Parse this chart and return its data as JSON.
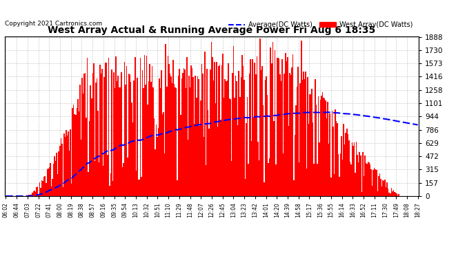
{
  "title": "West Array Actual & Running Average Power Fri Aug 6 18:35",
  "copyright": "Copyright 2021 Cartronics.com",
  "legend_avg": "Average(DC Watts)",
  "legend_west": "West Array(DC Watts)",
  "ymin": 0.0,
  "ymax": 1887.7,
  "yticks": [
    0.0,
    157.3,
    314.6,
    471.9,
    629.2,
    786.5,
    943.8,
    1101.2,
    1258.5,
    1415.8,
    1573.1,
    1730.4,
    1887.7
  ],
  "bg_color": "#ffffff",
  "grid_color": "#bbbbbb",
  "title_color": "#000000",
  "avg_line_color": "#0000ff",
  "west_fill_color": "#ff0000",
  "time_labels": [
    "06:02",
    "06:44",
    "07:03",
    "07:22",
    "07:41",
    "08:00",
    "08:19",
    "08:38",
    "08:57",
    "09:16",
    "09:35",
    "09:54",
    "10:13",
    "10:32",
    "10:51",
    "11:10",
    "11:29",
    "11:48",
    "12:07",
    "12:26",
    "12:45",
    "13:04",
    "13:23",
    "13:42",
    "14:01",
    "14:20",
    "14:39",
    "14:58",
    "15:17",
    "15:36",
    "15:55",
    "16:14",
    "16:33",
    "16:52",
    "17:11",
    "17:30",
    "17:49",
    "18:08",
    "18:27"
  ]
}
